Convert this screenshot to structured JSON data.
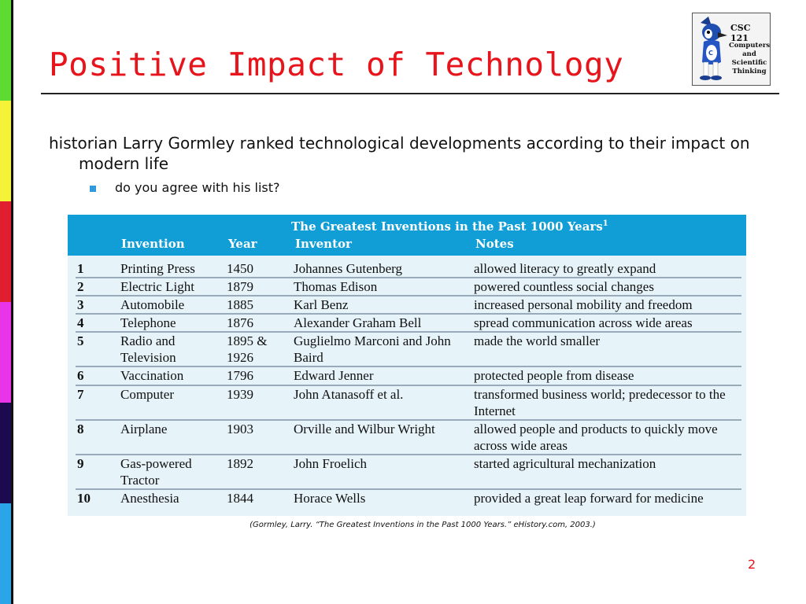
{
  "slide": {
    "title": "Positive Impact of Technology",
    "page_number": "2",
    "stripe_colors": [
      "#5ddb32",
      "#f5f23a",
      "#e01e30",
      "#e835e8",
      "#1b0a50",
      "#2aa6e8"
    ],
    "accent_color": "#e8141b"
  },
  "logo": {
    "code": "CSC 121",
    "lines": [
      "Computers",
      "and",
      "Scientific",
      "Thinking"
    ]
  },
  "body": {
    "intro": "historian Larry Gormley ranked technological developments according to their impact on modern life",
    "sub_bullet": "do you agree with his list?"
  },
  "table": {
    "caption": "The Greatest Inventions in the Past 1000 Years",
    "caption_sup": "1",
    "headers": [
      "Invention",
      "Year",
      "Inventor",
      "Notes"
    ],
    "header_color": "#119dd6",
    "rows": [
      {
        "rank": "1",
        "invention": "Printing Press",
        "year": "1450",
        "inventor": "Johannes Gutenberg",
        "notes": "allowed literacy to greatly expand"
      },
      {
        "rank": "2",
        "invention": "Electric Light",
        "year": "1879",
        "inventor": "Thomas Edison",
        "notes": "powered countless social changes"
      },
      {
        "rank": "3",
        "invention": "Automobile",
        "year": "1885",
        "inventor": "Karl Benz",
        "notes": "increased personal mobility and freedom"
      },
      {
        "rank": "4",
        "invention": "Telephone",
        "year": "1876",
        "inventor": "Alexander Graham Bell",
        "notes": "spread communication across wide areas"
      },
      {
        "rank": "5",
        "invention": "Radio and Television",
        "year": "1895 & 1926",
        "inventor": "Guglielmo Marconi and John Baird",
        "notes": "made the world smaller"
      },
      {
        "rank": "6",
        "invention": "Vaccination",
        "year": "1796",
        "inventor": "Edward Jenner",
        "notes": "protected people from disease"
      },
      {
        "rank": "7",
        "invention": "Computer",
        "year": "1939",
        "inventor": "John Atanasoff et al.",
        "notes": "transformed business world; predecessor to the Internet"
      },
      {
        "rank": "8",
        "invention": "Airplane",
        "year": "1903",
        "inventor": "Orville and Wilbur Wright",
        "notes": "allowed people and products to quickly move across wide areas"
      },
      {
        "rank": "9",
        "invention": "Gas-powered Tractor",
        "year": "1892",
        "inventor": "John Froelich",
        "notes": "started agricultural mechanization"
      },
      {
        "rank": "10",
        "invention": "Anesthesia",
        "year": "1844",
        "inventor": "Horace Wells",
        "notes": "provided a great leap forward for medicine"
      }
    ]
  },
  "citation": "(Gormley, Larry. “The Greatest Inventions in the Past 1000 Years.” eHistory.com, 2003.)"
}
